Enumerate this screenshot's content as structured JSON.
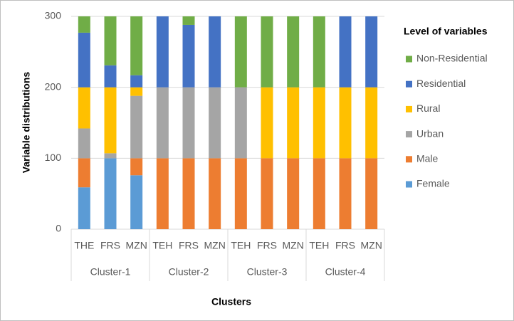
{
  "chart_data": {
    "type": "stacked-bar",
    "x_label": "Clusters",
    "y_label": "Variable distributions",
    "legend_title": "Level of variables",
    "categories": [
      "THE",
      "FRS",
      "MZN",
      "TEH",
      "FRS",
      "MZN",
      "TEH",
      "FRS",
      "MZN",
      "TEH",
      "FRS",
      "MZN"
    ],
    "groups": [
      "Cluster-1",
      "Cluster-2",
      "Cluster-3",
      "Cluster-4"
    ],
    "series": [
      {
        "name": "Female",
        "color": "#5b9bd5",
        "values": [
          59,
          100,
          76,
          0,
          0,
          0,
          0,
          0,
          0,
          0,
          0,
          0
        ]
      },
      {
        "name": "Male",
        "color": "#ed7d31",
        "values": [
          41,
          0,
          24,
          100,
          100,
          100,
          100,
          100,
          100,
          100,
          100,
          100
        ]
      },
      {
        "name": "Urban",
        "color": "#a5a5a5",
        "values": [
          42,
          7,
          88,
          100,
          100,
          100,
          100,
          0,
          0,
          0,
          0,
          0
        ]
      },
      {
        "name": "Rural",
        "color": "#ffc000",
        "values": [
          58,
          93,
          12,
          0,
          0,
          0,
          0,
          100,
          100,
          100,
          100,
          100
        ]
      },
      {
        "name": "Residential",
        "color": "#4472c4",
        "values": [
          77,
          31,
          17,
          100,
          88,
          100,
          0,
          0,
          0,
          0,
          100,
          100
        ]
      },
      {
        "name": "Non-Residential",
        "color": "#70ad47",
        "values": [
          23,
          69,
          83,
          0,
          12,
          0,
          100,
          100,
          100,
          100,
          0,
          0
        ]
      }
    ],
    "ylim": [
      0,
      300
    ],
    "yticks": [
      0,
      100,
      200,
      300
    ],
    "grid": true,
    "legend": "right"
  }
}
